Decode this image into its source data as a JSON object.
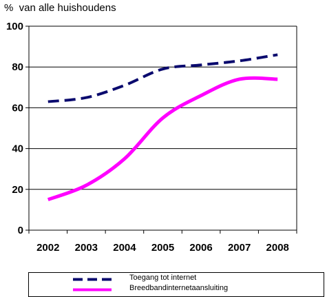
{
  "unit_label": "%  van alle huishoudens",
  "chart_data": {
    "type": "line",
    "title": "",
    "ylabel": "%  van alle huishoudens",
    "xlabel": "",
    "x": [
      "2002",
      "2003",
      "2004",
      "2005",
      "2006",
      "2007",
      "2008"
    ],
    "ylim": [
      0,
      100
    ],
    "yticks": [
      0,
      20,
      40,
      60,
      80,
      100
    ],
    "grid": true,
    "legend_position": "bottom",
    "series": [
      {
        "name": "Toegang tot internet",
        "values": [
          63,
          65,
          71,
          79,
          81,
          83,
          86
        ],
        "color": "#0a0a6e",
        "style": "dashed"
      },
      {
        "name": "Breedbandinternetaansluiting",
        "values": [
          15,
          22,
          35,
          55,
          66,
          74,
          74
        ],
        "color": "#ff00ff",
        "style": "solid"
      }
    ]
  }
}
